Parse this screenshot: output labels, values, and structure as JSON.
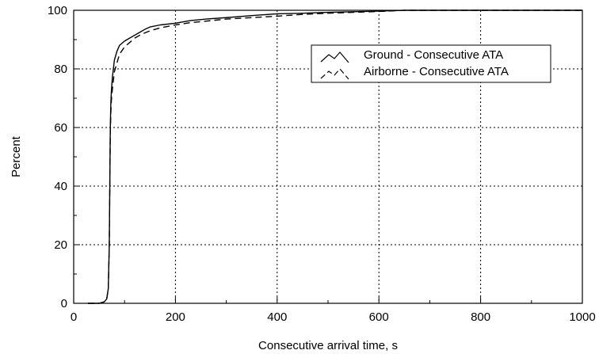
{
  "chart_data": {
    "type": "line",
    "xlabel": "Consecutive arrival time, s",
    "ylabel": "Percent",
    "xlim": [
      0,
      1000
    ],
    "ylim": [
      0,
      100
    ],
    "xticks": [
      0,
      200,
      400,
      600,
      800,
      1000
    ],
    "yticks": [
      0,
      20,
      40,
      60,
      80,
      100
    ],
    "xtick_labels": [
      "0",
      "200",
      "400",
      "600",
      "800",
      "1000"
    ],
    "ytick_labels": [
      "0",
      "20",
      "40",
      "60",
      "80",
      "100"
    ],
    "grid": true,
    "legend_position": "top-right",
    "series": [
      {
        "name": "Ground - Consecutive ATA",
        "style": "solid",
        "color": "#000000",
        "x": [
          28,
          50,
          60,
          65,
          68,
          70,
          71,
          72,
          73,
          74,
          76,
          78,
          80,
          85,
          90,
          100,
          110,
          120,
          130,
          140,
          150,
          170,
          200,
          230,
          260,
          300,
          350,
          400,
          450,
          500,
          550,
          600,
          650,
          700,
          800,
          900,
          1000
        ],
        "y": [
          0,
          0,
          0.5,
          1.5,
          5,
          20,
          40,
          60,
          68,
          72,
          77,
          80,
          83,
          86,
          88,
          89.5,
          90.5,
          91.5,
          92.5,
          93.5,
          94.3,
          95,
          95.6,
          96.5,
          97,
          97.5,
          98.2,
          98.8,
          99,
          99.3,
          99.5,
          99.7,
          100,
          100,
          100,
          100,
          100
        ]
      },
      {
        "name": "Airborne - Consecutive ATA",
        "style": "dashed",
        "color": "#000000",
        "x": [
          28,
          50,
          60,
          65,
          68,
          70,
          71,
          72,
          73,
          74,
          76,
          78,
          80,
          85,
          90,
          100,
          110,
          120,
          130,
          140,
          150,
          170,
          200,
          230,
          260,
          300,
          350,
          400,
          450,
          500,
          550,
          600,
          650,
          700,
          800,
          900,
          1000
        ],
        "y": [
          0,
          0,
          0.5,
          1.5,
          5,
          20,
          40,
          58,
          65,
          69,
          73,
          76,
          79,
          82,
          85,
          87.5,
          89,
          90.5,
          91.5,
          92.3,
          93,
          94,
          95,
          95.8,
          96.3,
          97,
          97.5,
          98,
          98.6,
          99,
          99.3,
          99.6,
          100,
          100,
          100,
          100,
          100
        ]
      }
    ]
  }
}
